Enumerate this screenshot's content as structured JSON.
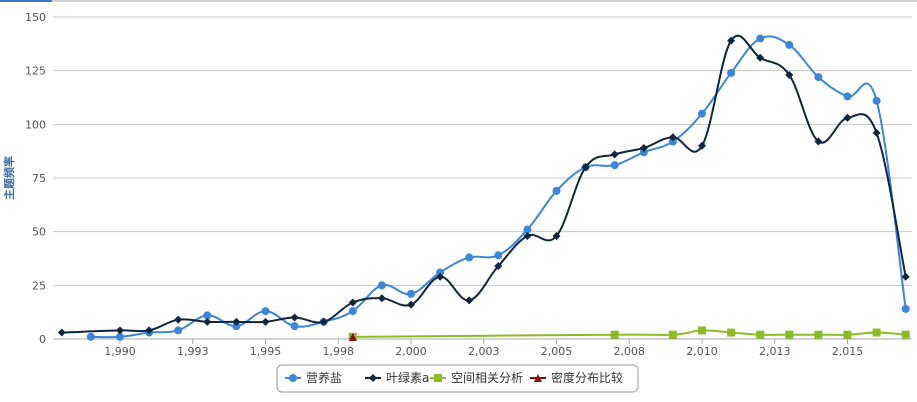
{
  "chart_data": {
    "type": "line",
    "title": "",
    "xlabel": "",
    "ylabel": "主题频率",
    "ylim": [
      0,
      150
    ],
    "yticks": [
      0,
      25,
      50,
      75,
      100,
      125,
      150
    ],
    "xlim": [
      1988,
      2017
    ],
    "xticks": [
      1990,
      1992.5,
      1995,
      1997.5,
      2000,
      2002.5,
      2005,
      2007.5,
      2010,
      2012.5,
      2015
    ],
    "xtick_labels": [
      "1,990",
      "1,993",
      "1,995",
      "1,998",
      "2,000",
      "2,003",
      "2,005",
      "2,008",
      "2,010",
      "2,013",
      "2,015"
    ],
    "grid": "horizontal",
    "legend_position": "bottom",
    "series": [
      {
        "name": "营养盐",
        "color": "#3b86d6",
        "marker": "circle",
        "x": [
          1989,
          1990,
          1991,
          1992,
          1993,
          1994,
          1995,
          1996,
          1997,
          1998,
          1999,
          2000,
          2001,
          2002,
          2003,
          2004,
          2005,
          2006,
          2007,
          2008,
          2009,
          2010,
          2011,
          2012,
          2013,
          2014,
          2015,
          2016,
          2017
        ],
        "y": [
          1,
          1,
          3,
          4,
          11,
          6,
          13,
          6,
          8,
          13,
          25,
          21,
          31,
          38,
          39,
          51,
          69,
          80,
          81,
          87,
          92,
          105,
          124,
          140,
          137,
          122,
          113,
          111,
          14
        ]
      },
      {
        "name": "叶绿素a",
        "color": "#0f2540",
        "marker": "diamond",
        "x": [
          1988,
          1990,
          1991,
          1992,
          1993,
          1994,
          1995,
          1996,
          1997,
          1998,
          1999,
          2000,
          2001,
          2002,
          2003,
          2004,
          2005,
          2006,
          2007,
          2008,
          2009,
          2010,
          2011,
          2012,
          2013,
          2014,
          2015,
          2016,
          2017
        ],
        "y": [
          3,
          4,
          4,
          9,
          8,
          8,
          8,
          10,
          8,
          17,
          19,
          16,
          29,
          18,
          34,
          48,
          48,
          80,
          86,
          89,
          94,
          90,
          139,
          131,
          123,
          92,
          103,
          96,
          29
        ]
      },
      {
        "name": "空间相关分析",
        "color": "#8dbb25",
        "marker": "square",
        "x": [
          1998,
          2007,
          2009,
          2010,
          2011,
          2012,
          2013,
          2014,
          2015,
          2016,
          2017
        ],
        "y": [
          1,
          2,
          2,
          4,
          3,
          2,
          2,
          2,
          2,
          3,
          2
        ]
      },
      {
        "name": "密度分布比较",
        "color": "#8b0a0a",
        "marker": "triangle",
        "x": [
          1998
        ],
        "y": [
          1
        ]
      }
    ]
  }
}
